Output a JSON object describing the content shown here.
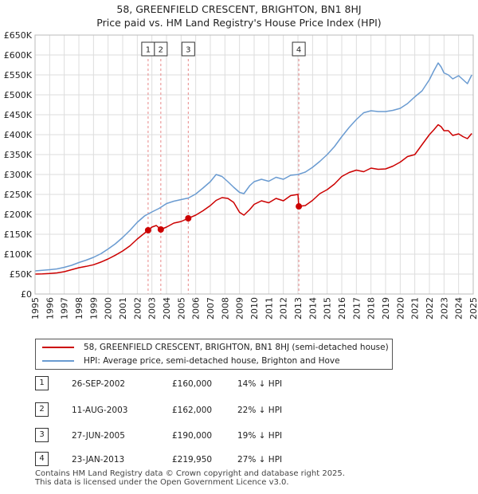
{
  "chart_data": {
    "type": "line",
    "title": "58, GREENFIELD CRESCENT, BRIGHTON, BN1 8HJ",
    "subtitle": "Price paid vs. HM Land Registry's House Price Index (HPI)",
    "xlim": [
      1995,
      2025
    ],
    "ylim": [
      0,
      650000
    ],
    "grid": true,
    "yticks": [
      0,
      50000,
      100000,
      150000,
      200000,
      250000,
      300000,
      350000,
      400000,
      450000,
      500000,
      550000,
      600000,
      650000
    ],
    "ytick_labels": [
      "£0",
      "£50K",
      "£100K",
      "£150K",
      "£200K",
      "£250K",
      "£300K",
      "£350K",
      "£400K",
      "£450K",
      "£500K",
      "£550K",
      "£600K",
      "£650K"
    ],
    "xticks": [
      1995,
      1996,
      1997,
      1998,
      1999,
      2000,
      2001,
      2002,
      2003,
      2004,
      2005,
      2006,
      2007,
      2008,
      2009,
      2010,
      2011,
      2012,
      2013,
      2014,
      2015,
      2016,
      2017,
      2018,
      2019,
      2020,
      2021,
      2022,
      2023,
      2024,
      2025
    ],
    "xtick_labels": [
      "1995",
      "1996",
      "1997",
      "1998",
      "1999",
      "2000",
      "2001",
      "2002",
      "2003",
      "2004",
      "2005",
      "2006",
      "2007",
      "2008",
      "2009",
      "2010",
      "2011",
      "2012",
      "2013",
      "2014",
      "2015",
      "2016",
      "2017",
      "2018",
      "2019",
      "2020",
      "2021",
      "2022",
      "2023",
      "2024",
      "2025"
    ],
    "series": [
      {
        "name": "58, GREENFIELD CRESCENT, BRIGHTON, BN1 8HJ (semi-detached house)",
        "color": "#cc0000",
        "x": [
          1995.0,
          1995.5,
          1996.0,
          1996.5,
          1997.0,
          1997.5,
          1998.0,
          1998.5,
          1999.0,
          1999.5,
          2000.0,
          2000.5,
          2001.0,
          2001.5,
          2002.0,
          2002.4,
          2002.74,
          2003.0,
          2003.3,
          2003.61,
          2004.0,
          2004.5,
          2005.0,
          2005.49,
          2006.0,
          2006.5,
          2007.0,
          2007.4,
          2007.8,
          2008.2,
          2008.6,
          2009.0,
          2009.3,
          2009.7,
          2010.0,
          2010.5,
          2011.0,
          2011.5,
          2012.0,
          2012.5,
          2013.0,
          2013.06,
          2013.5,
          2014.0,
          2014.5,
          2015.0,
          2015.5,
          2016.0,
          2016.5,
          2017.0,
          2017.5,
          2018.0,
          2018.5,
          2019.0,
          2019.5,
          2020.0,
          2020.5,
          2021.0,
          2021.5,
          2022.0,
          2022.3,
          2022.6,
          2022.8,
          2023.0,
          2023.3,
          2023.6,
          2024.0,
          2024.3,
          2024.6,
          2024.9
        ],
        "values": [
          50000,
          50500,
          51500,
          53000,
          56000,
          61000,
          66000,
          69500,
          73500,
          80000,
          88000,
          97500,
          108000,
          121000,
          138000,
          150000,
          160000,
          168000,
          172000,
          162000,
          168000,
          178000,
          182000,
          190000,
          198000,
          209000,
          222000,
          235000,
          242000,
          240000,
          230000,
          205000,
          198000,
          212000,
          225000,
          234000,
          229000,
          240000,
          234000,
          247000,
          250000,
          219950,
          222000,
          235000,
          252000,
          262000,
          276000,
          295000,
          305000,
          311000,
          307000,
          316000,
          313000,
          314000,
          321000,
          331000,
          345000,
          350000,
          375000,
          400000,
          412000,
          425000,
          420000,
          410000,
          410000,
          398000,
          402000,
          395000,
          390000,
          403000
        ]
      },
      {
        "name": "HPI: Average price, semi-detached house, Brighton and Hove",
        "color": "#6a9bd1",
        "x": [
          1995.0,
          1995.5,
          1996.0,
          1996.5,
          1997.0,
          1997.5,
          1998.0,
          1998.5,
          1999.0,
          1999.5,
          2000.0,
          2000.5,
          2001.0,
          2001.5,
          2002.0,
          2002.5,
          2003.0,
          2003.5,
          2004.0,
          2004.5,
          2005.0,
          2005.5,
          2006.0,
          2006.5,
          2007.0,
          2007.4,
          2007.8,
          2008.2,
          2008.6,
          2009.0,
          2009.3,
          2009.7,
          2010.0,
          2010.5,
          2011.0,
          2011.5,
          2012.0,
          2012.5,
          2013.0,
          2013.5,
          2014.0,
          2014.5,
          2015.0,
          2015.5,
          2016.0,
          2016.5,
          2017.0,
          2017.5,
          2018.0,
          2018.5,
          2019.0,
          2019.5,
          2020.0,
          2020.5,
          2021.0,
          2021.5,
          2022.0,
          2022.3,
          2022.6,
          2022.8,
          2023.0,
          2023.3,
          2023.6,
          2024.0,
          2024.3,
          2024.6,
          2024.9
        ],
        "values": [
          58000,
          59500,
          61000,
          63000,
          67000,
          72000,
          79000,
          85000,
          92000,
          101000,
          113000,
          126000,
          142000,
          160000,
          180000,
          196000,
          206000,
          215000,
          227000,
          233000,
          237000,
          241000,
          251000,
          266000,
          282000,
          300000,
          295000,
          282000,
          268000,
          255000,
          252000,
          272000,
          282000,
          288000,
          283000,
          293000,
          288000,
          298000,
          300000,
          306000,
          318000,
          333000,
          350000,
          370000,
          395000,
          418000,
          438000,
          455000,
          460000,
          458000,
          458000,
          461000,
          466000,
          478000,
          495000,
          510000,
          538000,
          560000,
          580000,
          570000,
          555000,
          550000,
          540000,
          548000,
          538000,
          528000,
          550000
        ]
      }
    ],
    "annotations": [
      {
        "label": "1",
        "x": 2002.74,
        "value": 160000
      },
      {
        "label": "2",
        "x": 2003.61,
        "value": 162000
      },
      {
        "label": "3",
        "x": 2005.49,
        "value": 190000
      },
      {
        "label": "4",
        "x": 2013.06,
        "value": 219950
      }
    ]
  },
  "legend": {
    "property_label": "58, GREENFIELD CRESCENT, BRIGHTON, BN1 8HJ (semi-detached house)",
    "hpi_label": "HPI: Average price, semi-detached house, Brighton and Hove",
    "property_color": "#cc0000",
    "hpi_color": "#6a9bd1"
  },
  "sales": [
    {
      "num": "1",
      "date": "26-SEP-2002",
      "price": "£160,000",
      "hpi": "14% ↓ HPI"
    },
    {
      "num": "2",
      "date": "11-AUG-2003",
      "price": "£162,000",
      "hpi": "22% ↓ HPI"
    },
    {
      "num": "3",
      "date": "27-JUN-2005",
      "price": "£190,000",
      "hpi": "19% ↓ HPI"
    },
    {
      "num": "4",
      "date": "23-JAN-2013",
      "price": "£219,950",
      "hpi": "27% ↓ HPI"
    }
  ],
  "footer": {
    "line1": "Contains HM Land Registry data © Crown copyright and database right 2025.",
    "line2": "This data is licensed under the Open Government Licence v3.0."
  }
}
